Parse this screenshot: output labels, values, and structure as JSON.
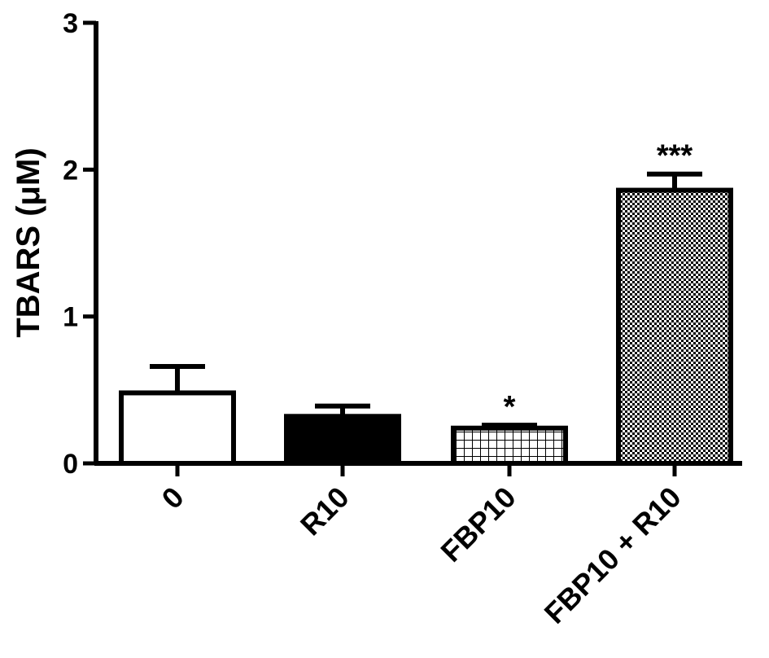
{
  "chart_data": {
    "type": "bar",
    "title": "",
    "xlabel": "",
    "ylabel": "TBARS (μM)",
    "ylim": [
      0,
      3
    ],
    "yticks": [
      "0",
      "1",
      "2",
      "3"
    ],
    "categories": [
      "0",
      "R10",
      "FBP10",
      "FBP10 + R10"
    ],
    "values": [
      0.48,
      0.32,
      0.24,
      1.86
    ],
    "errors": [
      0.18,
      0.07,
      0.02,
      0.11
    ],
    "significance": [
      "",
      "",
      "*",
      "***"
    ],
    "fills": [
      "white",
      "solid-black",
      "grid-pattern",
      "checker-pattern"
    ],
    "grid": false
  }
}
